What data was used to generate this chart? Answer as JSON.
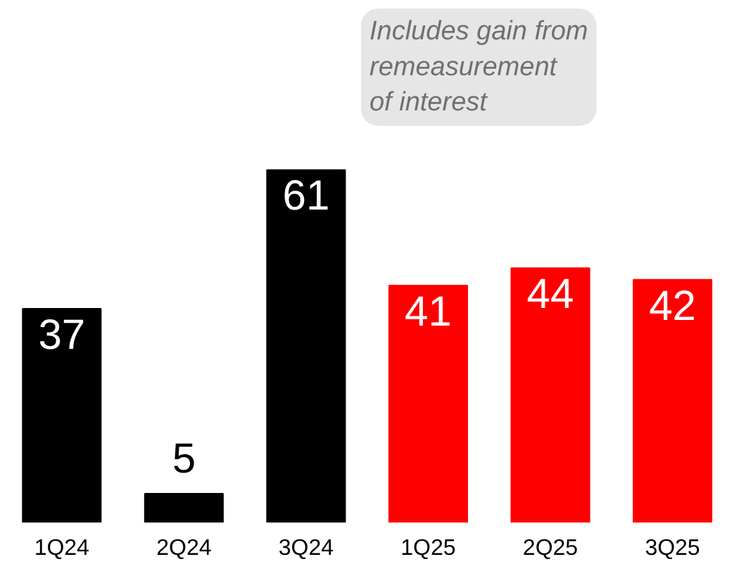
{
  "chart_data": {
    "type": "bar",
    "categories": [
      "1Q24",
      "2Q24",
      "3Q24",
      "1Q25",
      "2Q25",
      "3Q25"
    ],
    "values": [
      37,
      5,
      61,
      41,
      44,
      42
    ],
    "colors": [
      "#000000",
      "#000000",
      "#000000",
      "#ff0000",
      "#ff0000",
      "#ff0000"
    ],
    "data_labels": true,
    "annotations": [
      "Includes gain from\nremeasurement\nof interest"
    ]
  }
}
